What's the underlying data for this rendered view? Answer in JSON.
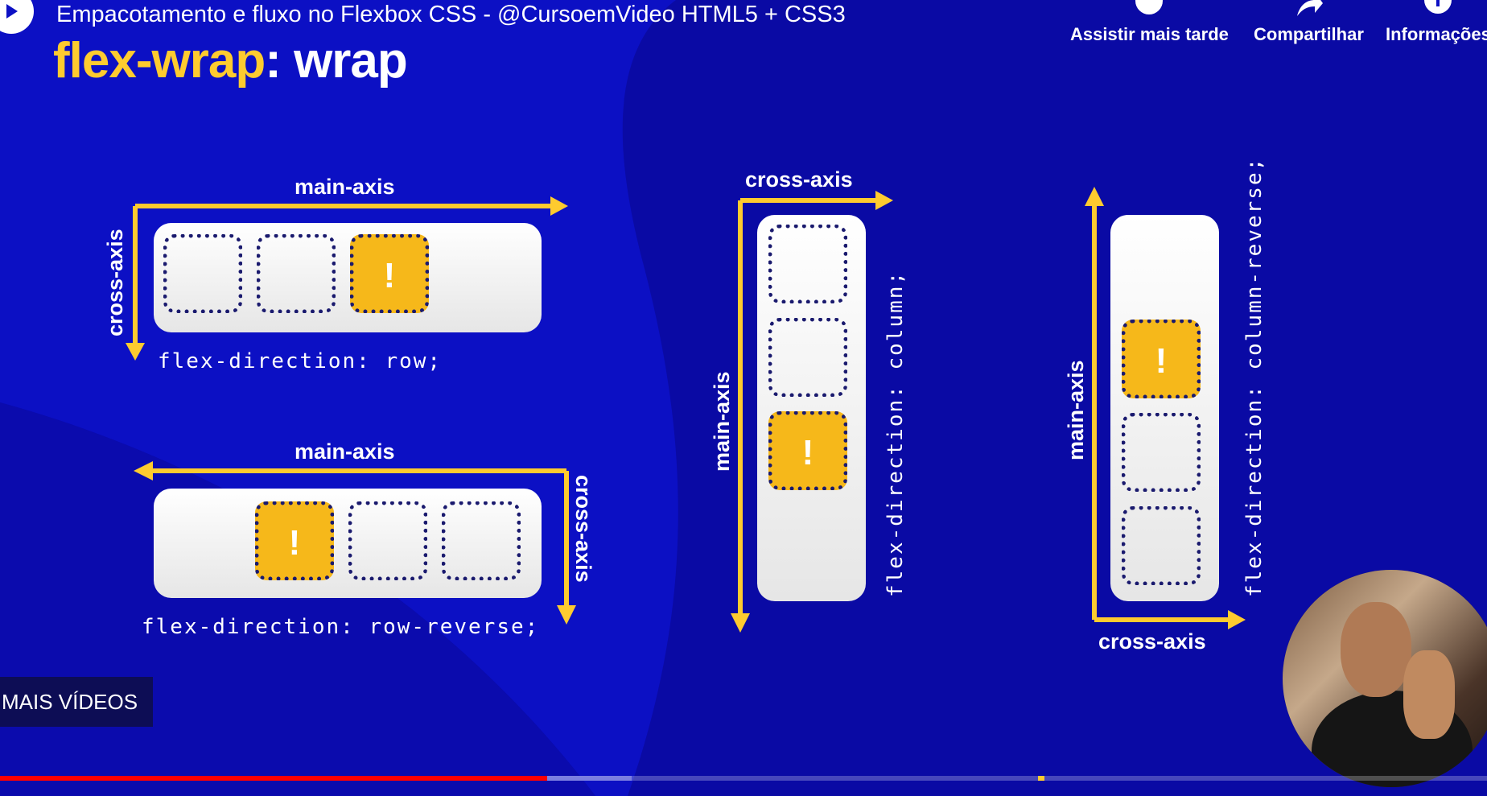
{
  "video": {
    "title": "Empacotamento e fluxo no Flexbox CSS - @CursoemVideo HTML5 + CSS3",
    "actions": [
      {
        "label": "Assistir mais tarde",
        "icon": "clock-icon"
      },
      {
        "label": "Compartilhar",
        "icon": "share-icon"
      },
      {
        "label": "Informações",
        "icon": "info-icon"
      }
    ],
    "more_videos_label": "MAIS VÍDEOS",
    "progress": {
      "played_fraction": 0.368,
      "buffered_fraction": 0.425,
      "played_color": "#ff0000",
      "buffered_color": "#7c7fe0",
      "marker_color": "#fecb2f"
    }
  },
  "slide": {
    "heading_property": "flex-wrap",
    "heading_value": ": wrap",
    "colors": {
      "background": "#0c10c4",
      "background_dark": "#0a0aa4",
      "accent_yellow": "#fecb2f",
      "item_highlight": "#f6b81a",
      "item_border": "#1a1a6e"
    },
    "diagrams": [
      {
        "id": "row",
        "code": "flex-direction: row;",
        "main_axis": "main-axis",
        "cross_axis": "cross-axis",
        "items": [
          "",
          "",
          "!"
        ]
      },
      {
        "id": "row-reverse",
        "code": "flex-direction: row-reverse;",
        "main_axis": "main-axis",
        "cross_axis": "cross-axis",
        "items": [
          "!",
          "",
          ""
        ]
      },
      {
        "id": "column",
        "code": "flex-direction: column;",
        "main_axis": "main-axis",
        "cross_axis": "cross-axis",
        "items": [
          "",
          "",
          "!"
        ]
      },
      {
        "id": "column-reverse",
        "code": "flex-direction: column-reverse;",
        "main_axis": "main-axis",
        "cross_axis": "cross-axis",
        "items": [
          "!",
          "",
          ""
        ]
      }
    ]
  }
}
